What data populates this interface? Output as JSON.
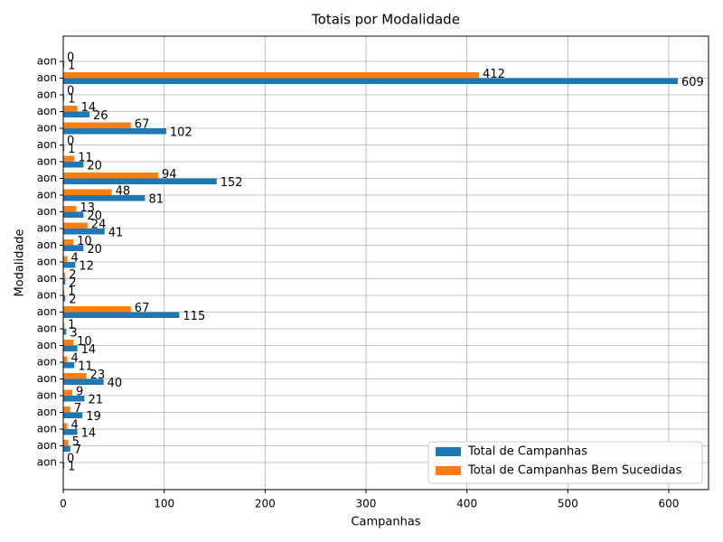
{
  "chart_data": {
    "type": "barh",
    "title": "Totais por Modalidade",
    "xlabel": "Campanhas",
    "ylabel": "Modalidade",
    "categories": [
      "aon",
      "aon",
      "aon",
      "aon",
      "aon",
      "aon",
      "aon",
      "aon",
      "aon",
      "aon",
      "aon",
      "aon",
      "aon",
      "aon",
      "aon",
      "aon",
      "aon",
      "aon",
      "aon",
      "aon",
      "aon",
      "aon",
      "aon",
      "aon",
      "aon"
    ],
    "series": [
      {
        "name": "Total de Campanhas",
        "color": "#1f77b4",
        "values": [
          1,
          7,
          14,
          19,
          21,
          40,
          11,
          14,
          3,
          115,
          2,
          2,
          12,
          20,
          41,
          20,
          81,
          152,
          20,
          1,
          102,
          26,
          1,
          609,
          1
        ]
      },
      {
        "name": "Total de Campanhas Bem Sucedidas",
        "color": "#ff7f0e",
        "values": [
          0,
          5,
          4,
          7,
          9,
          23,
          4,
          10,
          1,
          67,
          1,
          2,
          4,
          10,
          24,
          13,
          48,
          94,
          11,
          0,
          67,
          14,
          0,
          412,
          0
        ]
      }
    ],
    "xlim": [
      0,
      639.45
    ],
    "xticks": [
      0,
      100,
      200,
      300,
      400,
      500,
      600
    ],
    "grid": true,
    "legend": "lower right"
  }
}
